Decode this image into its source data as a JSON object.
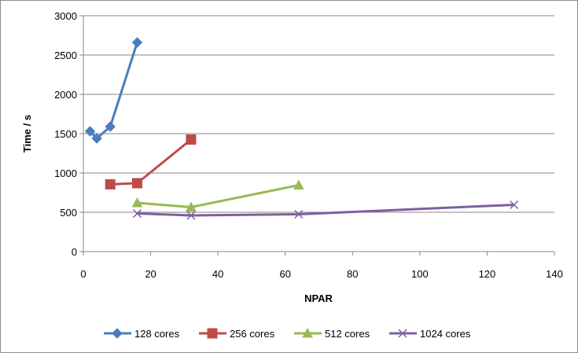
{
  "chart_data": {
    "type": "line",
    "title": "",
    "xlabel": "NPAR",
    "ylabel": "Time / s",
    "xlim": [
      0,
      140
    ],
    "ylim": [
      0,
      3000
    ],
    "xticks": [
      0,
      20,
      40,
      60,
      80,
      100,
      120,
      140
    ],
    "yticks": [
      0,
      500,
      1000,
      1500,
      2000,
      2500,
      3000
    ],
    "grid": "horizontal",
    "legend_position": "bottom",
    "series": [
      {
        "name": "128 cores",
        "color": "#4a7ebb",
        "marker": "diamond",
        "x": [
          2,
          4,
          8,
          16
        ],
        "y": [
          1530,
          1440,
          1590,
          2660
        ]
      },
      {
        "name": "256 cores",
        "color": "#be4b48",
        "marker": "square",
        "x": [
          8,
          16,
          32
        ],
        "y": [
          855,
          870,
          1425
        ]
      },
      {
        "name": "512 cores",
        "color": "#98b954",
        "marker": "triangle",
        "x": [
          16,
          32,
          64
        ],
        "y": [
          620,
          565,
          845
        ]
      },
      {
        "name": "1024 cores",
        "color": "#7d60a0",
        "marker": "x",
        "x": [
          16,
          32,
          64,
          128
        ],
        "y": [
          485,
          460,
          475,
          595
        ]
      }
    ]
  }
}
